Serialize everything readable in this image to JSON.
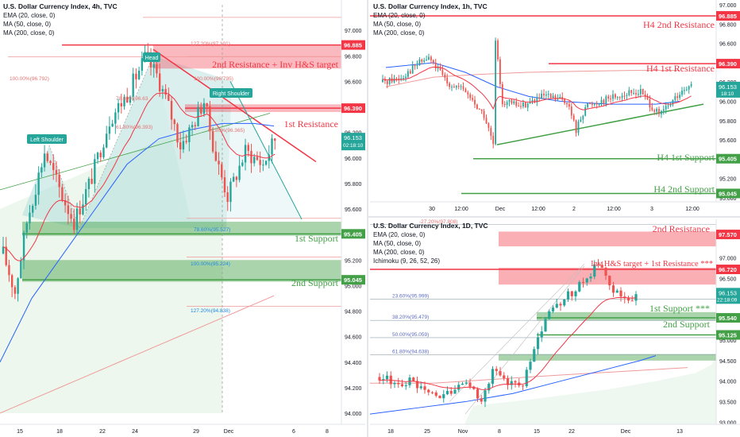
{
  "colors": {
    "up": "#26a69a",
    "down": "#ef5350",
    "resistance": "#f23645",
    "support": "#43a047",
    "ema20": "#f23645",
    "ma50": "#2962ff",
    "ma200": "#ef9a9a",
    "zone_red": "#f23645",
    "zone_green": "#43a047"
  },
  "charts": {
    "h4": {
      "title": "U.S. Dollar Currency Index, 4h, TVC",
      "ema": "EMA (20, close, 0)",
      "ma50": "MA (50, close, 0)",
      "ma200": "MA (200, close, 0)",
      "currency": "USD",
      "price_now": "96.153",
      "countdown": "02:18:10",
      "labels": {
        "fib127_top": "127.20%(97.101)",
        "fib100_left": "100.00%(96.792)",
        "fib100_right": "100.00%(96.795)",
        "fib786_left": "78.60%(96.63",
        "fib618_left": "61.80%(96.393)",
        "fib618_right": "61.80%(96.365)",
        "fib786_right": "78.60%(95.527)",
        "fib100_low": "100.00%(95.224)",
        "fib127_low": "127.20%(94.838)",
        "head": "Head",
        "left_shoulder": "Left Shoulder",
        "right_shoulder": "Right Shoulder",
        "res2": "2nd Resistance + Inv H&S target",
        "res1": "1st Resistance",
        "sup1": "1st Support",
        "sup2": "2nd Support",
        "res2_price": "96.885",
        "res1_price": "96.390",
        "sup1_price": "95.405",
        "sup2_price": "95.045"
      }
    },
    "h1": {
      "title": "U.S. Dollar Currency Index, 1h, TVC",
      "ema": "EMA (20, close, 0)",
      "ma50": "MA (50, close, 0)",
      "ma200": "MA (200, close, 0)",
      "currency": "USD",
      "price_now": "96.153",
      "countdown": "18:10",
      "labels": {
        "res2": "H4 2nd Resistance",
        "res1": "H4 1st Resistance",
        "sup1": "H4 1st Support",
        "sup2": "H4 2nd Support",
        "res2_price": "96.885",
        "res1_price": "96.390",
        "sup1_price": "95.405",
        "sup2_price": "95.045"
      }
    },
    "d1": {
      "title": "U.S. Dollar Currency Index, 1D, TVC",
      "ema": "EMA (20, close, 0)",
      "ma50": "MA (50, close, 0)",
      "ma200": "MA (200, close, 0)",
      "ichimoku": "Ichimoku (9, 26, 52, 26)",
      "price_now": "96.153",
      "countdown": "22:18:09",
      "labels": {
        "fib_top": "-27.20%(97.808)",
        "fib236": "23.60%(95.999)",
        "fib382": "38.20%(95.479)",
        "fib50": "50.00%(95.059)",
        "fib618": "61.80%(94.638)",
        "res2": "2nd Resistance",
        "res1": "Inv H&S target + 1st Resistance ***",
        "sup1": "1st Support ***",
        "sup2": "2nd Support",
        "res2_price": "97.570",
        "res1_price": "96.720",
        "sup1_price": "95.540",
        "sup2_price": "95.125"
      }
    }
  },
  "chart_data": [
    {
      "type": "candlestick",
      "title": "U.S. Dollar Currency Index, 4h, TVC",
      "ylim": [
        94.0,
        97.2
      ],
      "y_ticks": [
        "97.000",
        "96.800",
        "96.600",
        "96.400",
        "96.200",
        "96.000",
        "95.800",
        "95.600",
        "95.400",
        "95.200",
        "95.000",
        "94.800",
        "94.600",
        "94.400",
        "94.200",
        "94.000"
      ],
      "x_ticks": [
        "15",
        "18",
        "22",
        "24",
        "29",
        "Dec",
        "6",
        "8"
      ],
      "series": [
        {
          "name": "EMA (20, close, 0)",
          "values": [
            95.3,
            95.4,
            95.55,
            95.7,
            95.85,
            96.0,
            96.2,
            96.35,
            96.5,
            96.55,
            96.4,
            96.3,
            96.2,
            96.15,
            96.12,
            96.1
          ]
        },
        {
          "name": "MA (50, close, 0)",
          "values": [
            94.95,
            95.05,
            95.15,
            95.25,
            95.4,
            95.55,
            95.7,
            95.85,
            96.0,
            96.1,
            96.15,
            96.2,
            96.22,
            96.22,
            96.2,
            96.2
          ]
        },
        {
          "name": "MA (200, close, 0)",
          "values": [
            94.15,
            94.18,
            94.22,
            94.26,
            94.3,
            94.35,
            94.4,
            94.45,
            94.5,
            94.56,
            94.62,
            94.68,
            94.74,
            94.8,
            94.85,
            94.9
          ]
        }
      ],
      "levels": [
        {
          "name": "2nd Resistance + Inv H&S target",
          "value": 96.885
        },
        {
          "name": "1st Resistance",
          "value": 96.39
        },
        {
          "name": "1st Support",
          "value": 95.405
        },
        {
          "name": "2nd Support",
          "value": 95.045
        }
      ],
      "last_price": 96.153
    },
    {
      "type": "candlestick",
      "title": "U.S. Dollar Currency Index, 1h, TVC",
      "ylim": [
        94.95,
        97.0
      ],
      "y_ticks": [
        "97.000",
        "96.800",
        "96.600",
        "96.400",
        "96.200",
        "96.000",
        "95.800",
        "95.600",
        "95.400",
        "95.200",
        "95.000"
      ],
      "x_ticks": [
        "30",
        "12:00",
        "Dec",
        "12:00",
        "2",
        "12:00",
        "3",
        "12:00"
      ],
      "levels": [
        {
          "name": "H4 2nd Resistance",
          "value": 96.885
        },
        {
          "name": "H4 1st Resistance",
          "value": 96.39
        },
        {
          "name": "H4 1st Support",
          "value": 95.405
        },
        {
          "name": "H4 2nd Support",
          "value": 95.045
        }
      ],
      "last_price": 96.153
    },
    {
      "type": "candlestick",
      "title": "U.S. Dollar Currency Index, 1D, TVC",
      "ylim": [
        92.95,
        97.9
      ],
      "y_ticks": [
        "97.000",
        "96.500",
        "96.000",
        "95.500",
        "95.000",
        "94.500",
        "94.000",
        "93.500",
        "93.000"
      ],
      "x_ticks": [
        "18",
        "25",
        "Nov",
        "8",
        "15",
        "22",
        "Dec",
        "13"
      ],
      "fib_levels": [
        {
          "name": "-27.20%",
          "value": 97.808
        },
        {
          "name": "23.60%",
          "value": 95.999
        },
        {
          "name": "38.20%",
          "value": 95.479
        },
        {
          "name": "50.00%",
          "value": 95.059
        },
        {
          "name": "61.80%",
          "value": 94.638
        }
      ],
      "levels": [
        {
          "name": "2nd Resistance",
          "value": 97.57
        },
        {
          "name": "Inv H&S target + 1st Resistance ***",
          "value": 96.72
        },
        {
          "name": "1st Support ***",
          "value": 95.54
        },
        {
          "name": "2nd Support",
          "value": 95.125
        }
      ],
      "last_price": 96.153
    }
  ]
}
